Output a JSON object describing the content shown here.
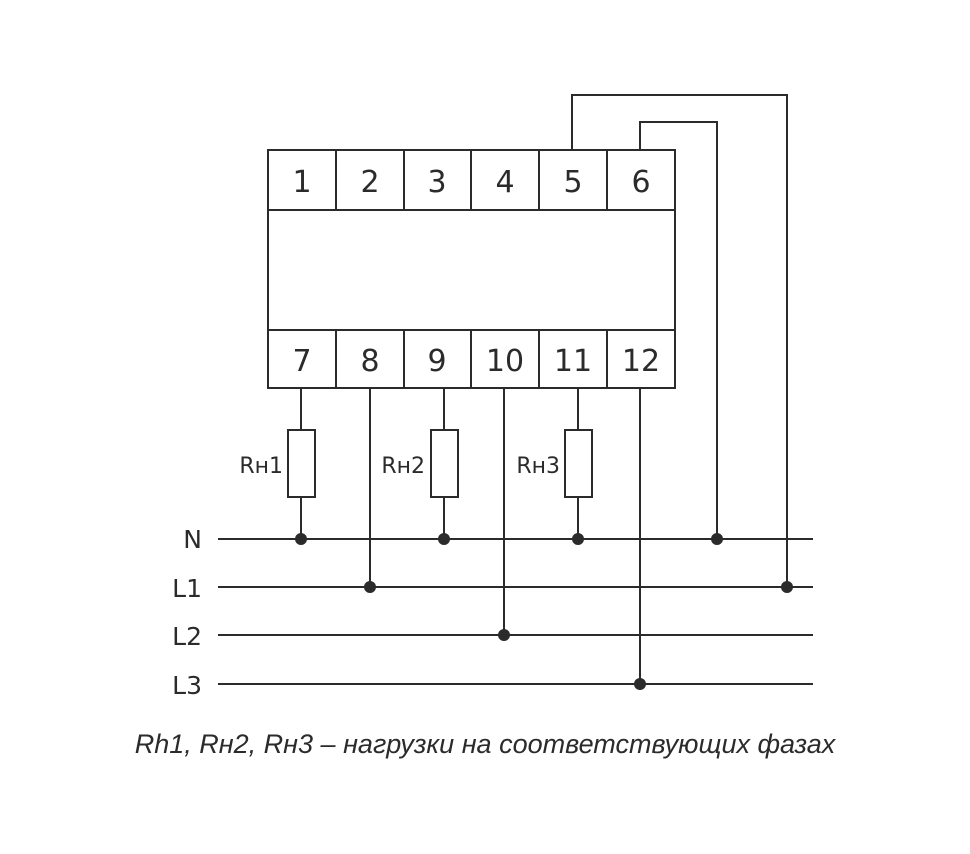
{
  "terminals_top": [
    "1",
    "2",
    "3",
    "4",
    "5",
    "6"
  ],
  "terminals_bottom": [
    "7",
    "8",
    "9",
    "10",
    "11",
    "12"
  ],
  "loads": [
    "Rн1",
    "Rн2",
    "Rн3"
  ],
  "buses": [
    "N",
    "L1",
    "L2",
    "L3"
  ],
  "caption": "Rh1, Rн2, Rн3 – нагрузки на соответствующих фазах",
  "colors": {
    "line": "#2b2b2b",
    "background": "#ffffff"
  }
}
